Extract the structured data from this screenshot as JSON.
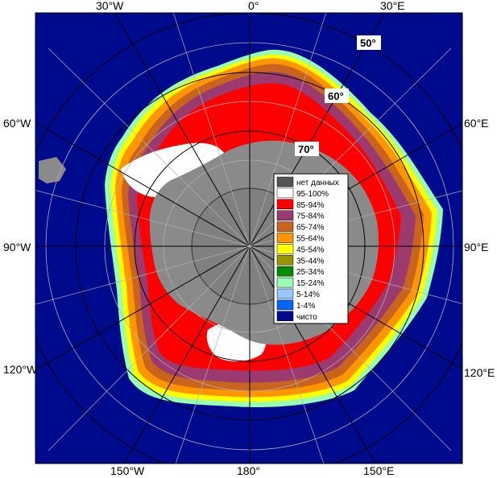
{
  "map": {
    "edge_labels": {
      "top": [
        "30°W",
        "0°",
        "30°E"
      ],
      "bottom": [
        "150°W",
        "180°",
        "150°E"
      ],
      "left": [
        "60°W",
        "90°W",
        "120°W"
      ],
      "right": [
        "60°E",
        "90°E",
        "120°E"
      ]
    },
    "lat_labels": [
      "50°",
      "60°",
      "70°"
    ]
  },
  "legend": {
    "items": [
      {
        "label": "нет данных",
        "color": "#555555"
      },
      {
        "label": "95-100%",
        "color": "#ffffff"
      },
      {
        "label": "85-94%",
        "color": "#ff0000"
      },
      {
        "label": "75-84%",
        "color": "#9b3a6e"
      },
      {
        "label": "65-74%",
        "color": "#c8641e"
      },
      {
        "label": "55-64%",
        "color": "#ff9600"
      },
      {
        "label": "45-54%",
        "color": "#ffff00"
      },
      {
        "label": "35-44%",
        "color": "#969600"
      },
      {
        "label": "25-34%",
        "color": "#008c00"
      },
      {
        "label": "15-24%",
        "color": "#96ffb4"
      },
      {
        "label": "5-14%",
        "color": "#96c8ff"
      },
      {
        "label": "1-4%",
        "color": "#0064ff"
      },
      {
        "label": "чисто",
        "color": "#000a8c"
      }
    ]
  },
  "colors": {
    "ocean": "#000a8c",
    "land": "#8a8a8a",
    "grid": "#b0b0b0"
  }
}
